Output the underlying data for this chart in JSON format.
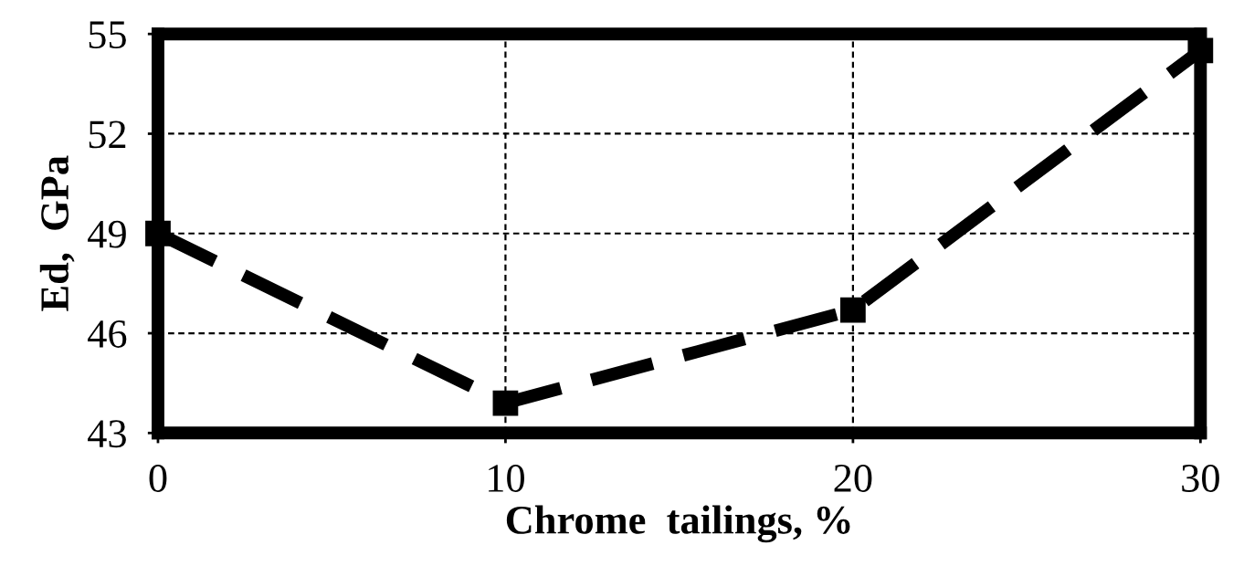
{
  "chart_data": {
    "type": "line",
    "xlabel": "Chrome  tailings, %",
    "ylabel": "Ed,  GPa",
    "x": [
      0,
      10,
      20,
      30
    ],
    "series": [
      {
        "color": "#000000",
        "values": [
          49.0,
          43.9,
          46.7,
          54.5
        ]
      }
    ],
    "xlim": [
      0,
      30
    ],
    "xticks": [
      0,
      10,
      20,
      30
    ],
    "ylim": [
      43,
      55
    ],
    "yticks": [
      43,
      46,
      49,
      52,
      55
    ],
    "grid": true,
    "marker": "square",
    "line_style": "dashed"
  }
}
